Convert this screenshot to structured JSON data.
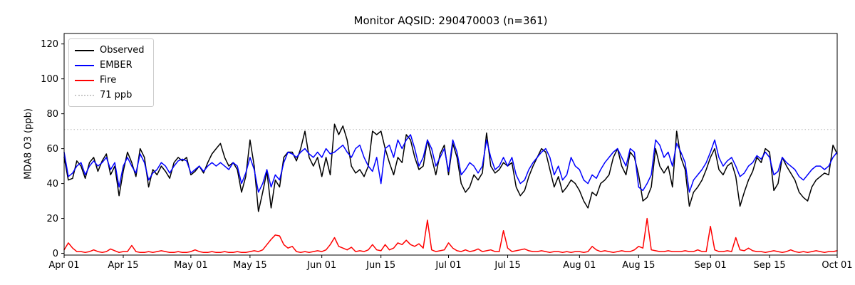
{
  "chart_data": {
    "type": "line",
    "title": "Monitor AQSID: 290470003 (n=361)",
    "xlabel": "",
    "ylabel": "MDA8 O3 (ppb)",
    "ylim": [
      -1,
      126
    ],
    "yticks": [
      0,
      20,
      40,
      60,
      80,
      100,
      120
    ],
    "x_tick_labels": [
      "Apr 01",
      "Apr 15",
      "May 01",
      "May 15",
      "Jun 01",
      "Jun 15",
      "Jul 01",
      "Jul 15",
      "Aug 01",
      "Aug 15",
      "Sep 01",
      "Sep 15",
      "Oct 01"
    ],
    "x_tick_indices": [
      0,
      14,
      30,
      44,
      61,
      75,
      91,
      105,
      122,
      136,
      153,
      167,
      183
    ],
    "n_points": 184,
    "grid": false,
    "legend_position": "upper left",
    "threshold": {
      "value": 71,
      "label": "71 ppb",
      "color": "#c9c9c9",
      "style": "dotted"
    },
    "series": [
      {
        "name": "Observed",
        "color": "#000000",
        "values": [
          55,
          42,
          43,
          53,
          50,
          43,
          52,
          55,
          47,
          53,
          57,
          45,
          50,
          33,
          47,
          58,
          52,
          44,
          60,
          55,
          38,
          48,
          45,
          50,
          47,
          43,
          52,
          55,
          53,
          55,
          45,
          47,
          50,
          46,
          52,
          57,
          60,
          63,
          55,
          50,
          52,
          48,
          35,
          44,
          65,
          50,
          24,
          35,
          47,
          26,
          42,
          38,
          55,
          58,
          58,
          53,
          60,
          70,
          55,
          50,
          55,
          44,
          55,
          45,
          74,
          68,
          73,
          65,
          50,
          46,
          48,
          44,
          50,
          70,
          68,
          70,
          60,
          52,
          45,
          55,
          52,
          68,
          65,
          55,
          48,
          50,
          65,
          55,
          45,
          57,
          62,
          45,
          63,
          55,
          40,
          35,
          38,
          45,
          42,
          46,
          69,
          50,
          46,
          48,
          52,
          50,
          52,
          38,
          33,
          36,
          44,
          50,
          55,
          60,
          58,
          48,
          38,
          44,
          35,
          38,
          42,
          40,
          36,
          30,
          26,
          35,
          33,
          40,
          42,
          45,
          55,
          60,
          50,
          45,
          58,
          55,
          45,
          30,
          32,
          38,
          60,
          50,
          46,
          50,
          38,
          70,
          55,
          48,
          27,
          35,
          38,
          42,
          48,
          55,
          60,
          48,
          45,
          50,
          52,
          44,
          27,
          35,
          42,
          47,
          55,
          52,
          60,
          58,
          36,
          40,
          55,
          50,
          46,
          42,
          35,
          32,
          30,
          38,
          42,
          44,
          46,
          45,
          62,
          57
        ]
      },
      {
        "name": "EMBER",
        "color": "#0000ff",
        "values": [
          58,
          44,
          46,
          50,
          52,
          45,
          50,
          53,
          50,
          52,
          55,
          48,
          52,
          38,
          50,
          55,
          50,
          46,
          57,
          52,
          42,
          46,
          48,
          52,
          50,
          46,
          50,
          53,
          54,
          53,
          46,
          48,
          50,
          47,
          50,
          52,
          50,
          52,
          50,
          48,
          52,
          50,
          40,
          46,
          55,
          48,
          35,
          40,
          48,
          38,
          45,
          42,
          52,
          58,
          57,
          55,
          58,
          60,
          57,
          55,
          58,
          55,
          60,
          57,
          58,
          60,
          62,
          58,
          55,
          60,
          62,
          55,
          50,
          47,
          55,
          40,
          60,
          62,
          55,
          65,
          60,
          65,
          68,
          60,
          50,
          55,
          65,
          60,
          50,
          55,
          60,
          47,
          65,
          58,
          45,
          48,
          52,
          50,
          46,
          50,
          65,
          55,
          48,
          50,
          55,
          50,
          55,
          45,
          40,
          42,
          48,
          52,
          55,
          58,
          60,
          55,
          45,
          50,
          42,
          45,
          55,
          50,
          48,
          42,
          40,
          45,
          43,
          48,
          52,
          55,
          58,
          60,
          55,
          50,
          60,
          58,
          38,
          36,
          40,
          45,
          65,
          62,
          55,
          58,
          50,
          63,
          58,
          52,
          35,
          42,
          45,
          48,
          52,
          58,
          65,
          55,
          50,
          53,
          55,
          50,
          44,
          46,
          50,
          52,
          56,
          54,
          58,
          55,
          45,
          47,
          55,
          52,
          50,
          48,
          44,
          42,
          45,
          48,
          50,
          50,
          48,
          50,
          55,
          58
        ]
      },
      {
        "name": "Fire",
        "color": "#ff0000",
        "values": [
          2,
          6,
          3,
          1,
          1,
          0.5,
          1,
          2,
          1,
          0.5,
          1,
          2.5,
          1.5,
          0.5,
          1,
          1,
          4.5,
          1,
          0.5,
          0.5,
          1,
          0.5,
          1,
          1.5,
          1,
          0.5,
          0.5,
          1,
          0.5,
          0.5,
          1,
          2,
          1,
          0.5,
          0.5,
          1,
          0.5,
          0.5,
          1,
          0.5,
          0.5,
          1,
          0.5,
          0.5,
          1,
          1.5,
          1,
          2,
          5,
          8,
          10.5,
          10,
          5,
          3,
          4,
          1,
          0.5,
          1,
          0.5,
          1,
          1.5,
          1,
          2,
          5,
          9,
          4,
          3,
          2,
          3.5,
          1,
          1.5,
          1,
          2,
          5,
          2,
          1.5,
          5,
          2,
          3,
          6,
          5,
          7.5,
          5,
          4,
          5.5,
          3,
          19,
          2,
          1,
          1.5,
          2,
          6,
          3,
          1.5,
          1,
          2,
          1,
          1.5,
          2.5,
          1,
          1.5,
          2,
          1,
          1,
          13,
          3,
          1,
          1.5,
          2,
          2.5,
          1.5,
          1,
          1,
          1.5,
          1,
          0.5,
          1,
          1,
          0.5,
          1,
          0.5,
          1,
          1,
          0.5,
          1,
          4,
          2,
          1,
          1.5,
          1,
          0.5,
          1,
          1.5,
          1,
          1,
          2,
          4,
          3,
          20,
          2,
          1.5,
          1,
          1,
          1.5,
          1,
          1,
          1,
          1.5,
          1,
          1,
          2,
          1,
          1,
          15.5,
          2,
          1,
          1,
          1.5,
          1,
          9,
          2,
          1.5,
          3,
          1.5,
          1,
          1,
          0.5,
          1,
          1.5,
          1,
          0.5,
          1,
          2,
          1,
          0.5,
          1,
          0.5,
          1,
          1.5,
          1,
          0.5,
          1,
          1,
          1.5
        ]
      }
    ]
  }
}
